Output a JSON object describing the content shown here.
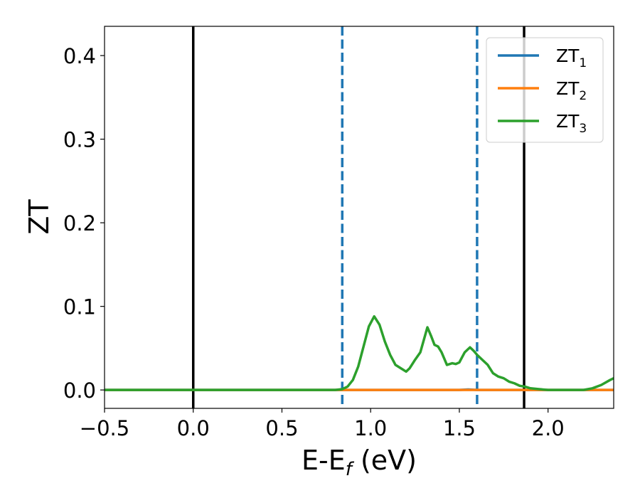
{
  "chart_data": {
    "type": "line",
    "xlabel": "E-E",
    "xlabel_sub": "f",
    "xlabel_unit": " (eV)",
    "ylabel": "ZT",
    "xlim": [
      -0.5,
      2.37
    ],
    "ylim": [
      -0.022,
      0.435
    ],
    "x_ticks": [
      -0.5,
      0.0,
      0.5,
      1.0,
      1.5,
      2.0
    ],
    "x_tick_labels": [
      "−0.5",
      "0.0",
      "0.5",
      "1.0",
      "1.5",
      "2.0"
    ],
    "y_ticks": [
      0.0,
      0.1,
      0.2,
      0.3,
      0.4
    ],
    "y_tick_labels": [
      "0.0",
      "0.1",
      "0.2",
      "0.3",
      "0.4"
    ],
    "grid": false,
    "legend_position": "top-right",
    "vlines": [
      {
        "x": 0.0,
        "style": "solid",
        "color": "#000000"
      },
      {
        "x": 1.865,
        "style": "solid",
        "color": "#000000"
      },
      {
        "x": 0.84,
        "style": "dashed",
        "color": "#1f77b4"
      },
      {
        "x": 1.6,
        "style": "dashed",
        "color": "#1f77b4"
      }
    ],
    "series": [
      {
        "name": "ZT",
        "name_sub": "1",
        "color": "#1f77b4",
        "x": [
          -0.5,
          0.8,
          1.0,
          1.5,
          1.55,
          1.6,
          2.0,
          2.37
        ],
        "y": [
          0.0,
          0.0,
          0.0,
          0.0,
          0.0006,
          0.0,
          0.0,
          0.0
        ]
      },
      {
        "name": "ZT",
        "name_sub": "2",
        "color": "#ff7f0e",
        "x": [
          -0.5,
          2.37
        ],
        "y": [
          0.0,
          0.0
        ]
      },
      {
        "name": "ZT",
        "name_sub": "3",
        "color": "#2ca02c",
        "x": [
          -0.5,
          0.8,
          0.84,
          0.87,
          0.9,
          0.93,
          0.96,
          0.99,
          1.02,
          1.05,
          1.08,
          1.11,
          1.14,
          1.17,
          1.2,
          1.22,
          1.25,
          1.28,
          1.3,
          1.32,
          1.34,
          1.36,
          1.38,
          1.4,
          1.43,
          1.46,
          1.48,
          1.5,
          1.53,
          1.56,
          1.58,
          1.6,
          1.63,
          1.66,
          1.69,
          1.72,
          1.75,
          1.78,
          1.81,
          1.84,
          1.87,
          1.9,
          1.95,
          2.0,
          2.1,
          2.2,
          2.25,
          2.3,
          2.35,
          2.37
        ],
        "y": [
          0.0,
          0.0,
          0.001,
          0.004,
          0.012,
          0.028,
          0.052,
          0.076,
          0.088,
          0.078,
          0.058,
          0.042,
          0.03,
          0.026,
          0.022,
          0.026,
          0.036,
          0.045,
          0.06,
          0.075,
          0.065,
          0.054,
          0.052,
          0.045,
          0.03,
          0.032,
          0.031,
          0.033,
          0.045,
          0.051,
          0.047,
          0.042,
          0.036,
          0.03,
          0.02,
          0.016,
          0.014,
          0.01,
          0.008,
          0.005,
          0.004,
          0.002,
          0.001,
          0.0,
          0.0,
          0.0,
          0.002,
          0.006,
          0.012,
          0.014
        ]
      }
    ]
  }
}
